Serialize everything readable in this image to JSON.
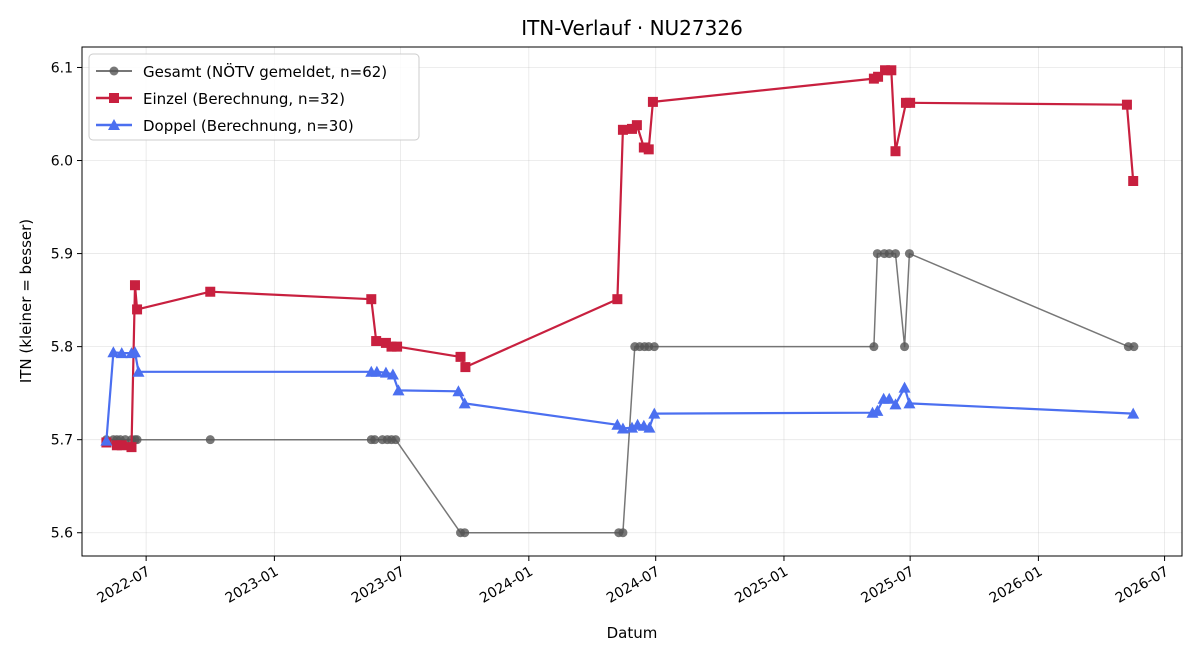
{
  "chart_data": {
    "type": "line",
    "title": "ITN-Verlauf · NU27326",
    "xlabel": "Datum",
    "ylabel": "ITN  (kleiner = besser)",
    "xlim": [
      "2022-03-31",
      "2026-07-26"
    ],
    "ylim": [
      5.575,
      6.122
    ],
    "grid": true,
    "legend_position": "top-left",
    "x_ticks": [
      "2022-07",
      "2023-01",
      "2023-07",
      "2024-01",
      "2024-07",
      "2025-01",
      "2025-07",
      "2026-01",
      "2026-07"
    ],
    "y_ticks": [
      "5.6",
      "5.7",
      "5.8",
      "5.9",
      "6.0",
      "6.1"
    ],
    "series": [
      {
        "name": "Gesamt (NÖTV gemeldet, n=62)",
        "color": "#555555",
        "marker": "circle",
        "line_width": 1.5,
        "points": [
          [
            "2022-05-05",
            5.7
          ],
          [
            "2022-05-15",
            5.7
          ],
          [
            "2022-05-20",
            5.7
          ],
          [
            "2022-05-25",
            5.7
          ],
          [
            "2022-06-01",
            5.7
          ],
          [
            "2022-06-10",
            5.7
          ],
          [
            "2022-06-15",
            5.7
          ],
          [
            "2022-06-18",
            5.7
          ],
          [
            "2022-10-01",
            5.7
          ],
          [
            "2023-05-20",
            5.7
          ],
          [
            "2023-05-25",
            5.7
          ],
          [
            "2023-06-05",
            5.7
          ],
          [
            "2023-06-12",
            5.7
          ],
          [
            "2023-06-18",
            5.7
          ],
          [
            "2023-06-24",
            5.7
          ],
          [
            "2023-09-25",
            5.6
          ],
          [
            "2023-10-01",
            5.6
          ],
          [
            "2024-05-09",
            5.6
          ],
          [
            "2024-05-15",
            5.6
          ],
          [
            "2024-06-01",
            5.8
          ],
          [
            "2024-06-08",
            5.8
          ],
          [
            "2024-06-15",
            5.8
          ],
          [
            "2024-06-21",
            5.8
          ],
          [
            "2024-06-29",
            5.8
          ],
          [
            "2025-05-10",
            5.8
          ],
          [
            "2025-05-15",
            5.9
          ],
          [
            "2025-05-25",
            5.9
          ],
          [
            "2025-06-01",
            5.9
          ],
          [
            "2025-06-10",
            5.9
          ],
          [
            "2025-06-23",
            5.8
          ],
          [
            "2025-06-30",
            5.9
          ],
          [
            "2026-05-10",
            5.8
          ],
          [
            "2026-05-18",
            5.8
          ]
        ]
      },
      {
        "name": "Einzel (Berechnung, n=32)",
        "color": "#c8203f",
        "marker": "square",
        "line_width": 2.2,
        "points": [
          [
            "2022-05-05",
            5.697
          ],
          [
            "2022-05-20",
            5.694
          ],
          [
            "2022-05-27",
            5.694
          ],
          [
            "2022-06-10",
            5.692
          ],
          [
            "2022-06-15",
            5.866
          ],
          [
            "2022-06-18",
            5.84
          ],
          [
            "2022-10-01",
            5.859
          ],
          [
            "2023-05-20",
            5.851
          ],
          [
            "2023-05-27",
            5.806
          ],
          [
            "2023-06-10",
            5.804
          ],
          [
            "2023-06-18",
            5.8
          ],
          [
            "2023-06-26",
            5.8
          ],
          [
            "2023-09-25",
            5.789
          ],
          [
            "2023-10-02",
            5.778
          ],
          [
            "2024-05-07",
            5.851
          ],
          [
            "2024-05-15",
            6.033
          ],
          [
            "2024-05-28",
            6.034
          ],
          [
            "2024-06-04",
            6.038
          ],
          [
            "2024-06-14",
            6.014
          ],
          [
            "2024-06-21",
            6.012
          ],
          [
            "2024-06-27",
            6.063
          ],
          [
            "2025-05-10",
            6.088
          ],
          [
            "2025-05-16",
            6.09
          ],
          [
            "2025-05-26",
            6.097
          ],
          [
            "2025-06-04",
            6.097
          ],
          [
            "2025-06-10",
            6.01
          ],
          [
            "2025-06-25",
            6.062
          ],
          [
            "2025-07-01",
            6.062
          ],
          [
            "2026-05-08",
            6.06
          ],
          [
            "2026-05-17",
            5.978
          ]
        ]
      },
      {
        "name": "Doppel (Berechnung, n=30)",
        "color": "#4b6ff0",
        "marker": "triangle",
        "line_width": 2.2,
        "points": [
          [
            "2022-05-05",
            5.699
          ],
          [
            "2022-05-15",
            5.794
          ],
          [
            "2022-05-27",
            5.793
          ],
          [
            "2022-06-10",
            5.793
          ],
          [
            "2022-06-15",
            5.794
          ],
          [
            "2022-06-20",
            5.773
          ],
          [
            "2023-05-20",
            5.773
          ],
          [
            "2023-05-28",
            5.773
          ],
          [
            "2023-06-10",
            5.772
          ],
          [
            "2023-06-20",
            5.77
          ],
          [
            "2023-06-28",
            5.753
          ],
          [
            "2023-09-22",
            5.752
          ],
          [
            "2023-10-01",
            5.739
          ],
          [
            "2024-05-07",
            5.716
          ],
          [
            "2024-05-15",
            5.712
          ],
          [
            "2024-05-28",
            5.713
          ],
          [
            "2024-06-05",
            5.716
          ],
          [
            "2024-06-14",
            5.715
          ],
          [
            "2024-06-22",
            5.713
          ],
          [
            "2024-06-29",
            5.728
          ],
          [
            "2025-05-08",
            5.729
          ],
          [
            "2025-05-15",
            5.731
          ],
          [
            "2025-05-24",
            5.744
          ],
          [
            "2025-06-01",
            5.744
          ],
          [
            "2025-06-10",
            5.738
          ],
          [
            "2025-06-23",
            5.756
          ],
          [
            "2025-06-30",
            5.739
          ],
          [
            "2026-05-17",
            5.728
          ]
        ]
      }
    ]
  }
}
